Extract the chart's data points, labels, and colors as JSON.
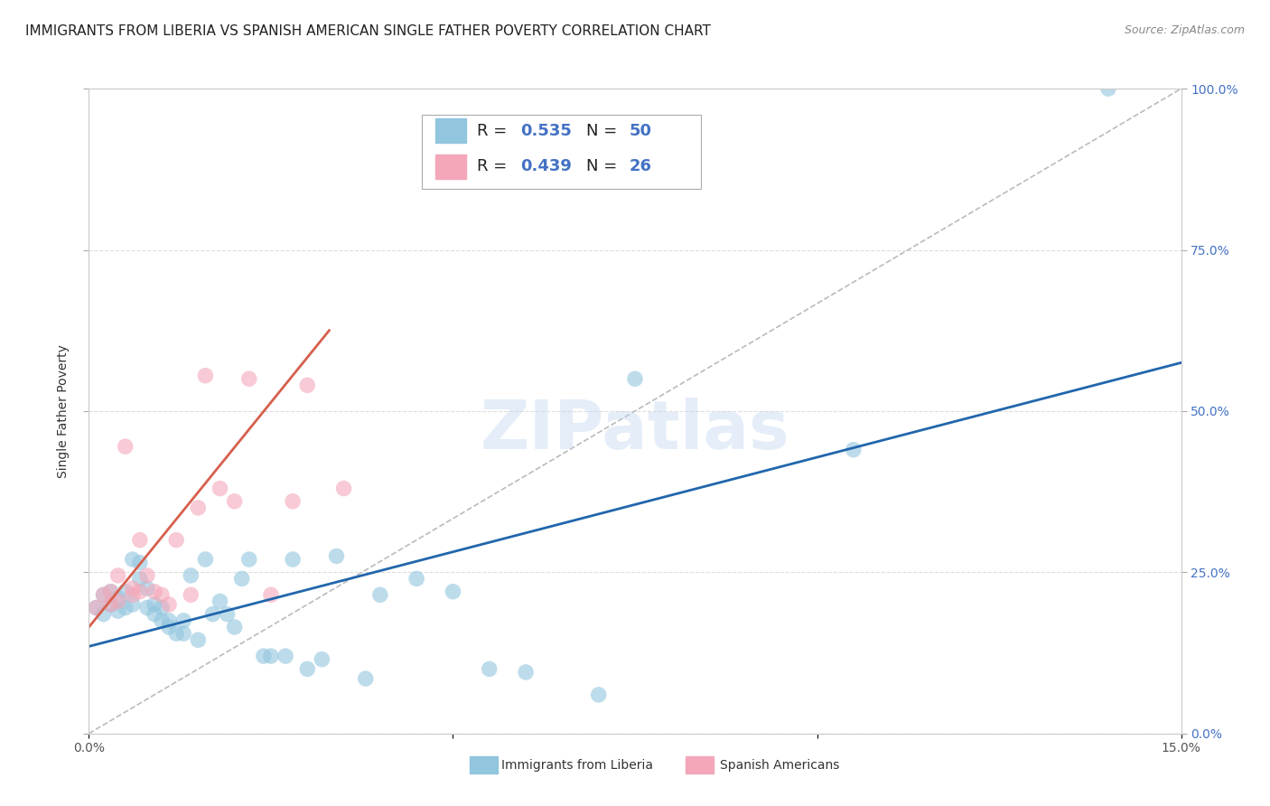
{
  "title": "IMMIGRANTS FROM LIBERIA VS SPANISH AMERICAN SINGLE FATHER POVERTY CORRELATION CHART",
  "source": "Source: ZipAtlas.com",
  "ylabel": "Single Father Poverty",
  "xlim": [
    0,
    0.15
  ],
  "ylim": [
    0,
    1.0
  ],
  "xticks": [
    0.0,
    0.05,
    0.1,
    0.15
  ],
  "xtick_labels": [
    "0.0%",
    "",
    "",
    "15.0%"
  ],
  "yticks": [
    0.0,
    0.25,
    0.5,
    0.75,
    1.0
  ],
  "ytick_labels_right": [
    "0.0%",
    "25.0%",
    "50.0%",
    "75.0%",
    "100.0%"
  ],
  "legend_r1": "0.535",
  "legend_n1": "50",
  "legend_r2": "0.439",
  "legend_n2": "26",
  "blue_color": "#92c5de",
  "pink_color": "#f4a7b9",
  "blue_line_color": "#2166ac",
  "pink_line_color": "#d6604d",
  "diag_color": "#bbbbbb",
  "watermark_text": "ZIPatlas",
  "title_fontsize": 11,
  "axis_label_fontsize": 10,
  "tick_fontsize": 10,
  "blue_scatter_x": [
    0.001,
    0.002,
    0.002,
    0.003,
    0.003,
    0.004,
    0.004,
    0.005,
    0.005,
    0.006,
    0.006,
    0.007,
    0.007,
    0.008,
    0.008,
    0.009,
    0.009,
    0.01,
    0.01,
    0.011,
    0.011,
    0.012,
    0.013,
    0.013,
    0.014,
    0.015,
    0.016,
    0.017,
    0.018,
    0.019,
    0.02,
    0.021,
    0.022,
    0.024,
    0.025,
    0.027,
    0.028,
    0.03,
    0.032,
    0.034,
    0.038,
    0.04,
    0.045,
    0.05,
    0.055,
    0.06,
    0.07,
    0.075,
    0.105,
    0.14
  ],
  "blue_scatter_y": [
    0.195,
    0.185,
    0.215,
    0.2,
    0.22,
    0.19,
    0.21,
    0.195,
    0.22,
    0.2,
    0.27,
    0.24,
    0.265,
    0.195,
    0.225,
    0.2,
    0.185,
    0.195,
    0.175,
    0.175,
    0.165,
    0.155,
    0.155,
    0.175,
    0.245,
    0.145,
    0.27,
    0.185,
    0.205,
    0.185,
    0.165,
    0.24,
    0.27,
    0.12,
    0.12,
    0.12,
    0.27,
    0.1,
    0.115,
    0.275,
    0.085,
    0.215,
    0.24,
    0.22,
    0.1,
    0.095,
    0.06,
    0.55,
    0.44,
    1.0
  ],
  "pink_scatter_x": [
    0.001,
    0.002,
    0.003,
    0.003,
    0.004,
    0.004,
    0.005,
    0.006,
    0.006,
    0.007,
    0.007,
    0.008,
    0.009,
    0.01,
    0.011,
    0.012,
    0.014,
    0.015,
    0.016,
    0.018,
    0.02,
    0.022,
    0.025,
    0.028,
    0.03,
    0.035
  ],
  "pink_scatter_y": [
    0.195,
    0.215,
    0.2,
    0.22,
    0.205,
    0.245,
    0.445,
    0.215,
    0.225,
    0.22,
    0.3,
    0.245,
    0.22,
    0.215,
    0.2,
    0.3,
    0.215,
    0.35,
    0.555,
    0.38,
    0.36,
    0.55,
    0.215,
    0.36,
    0.54,
    0.38
  ],
  "blue_line_x": [
    0.0,
    0.15
  ],
  "blue_line_y": [
    0.135,
    0.575
  ],
  "pink_line_x": [
    0.0,
    0.033
  ],
  "pink_line_y": [
    0.165,
    0.625
  ]
}
